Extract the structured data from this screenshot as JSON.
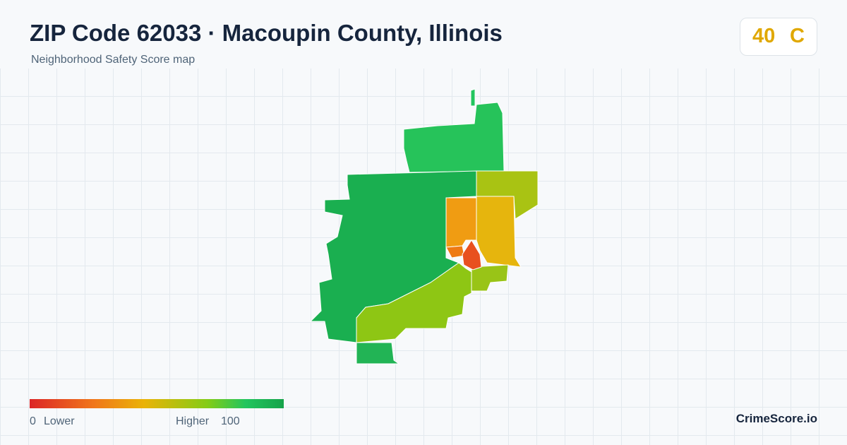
{
  "header": {
    "title": "ZIP Code 62033 · Macoupin County, Illinois",
    "subtitle": "Neighborhood Safety Score map"
  },
  "badge": {
    "score": "40",
    "grade": "C"
  },
  "legend": {
    "min": "0",
    "min_label": "Lower",
    "max_label": "Higher",
    "max": "100"
  },
  "brand": "CrimeScore.io"
}
